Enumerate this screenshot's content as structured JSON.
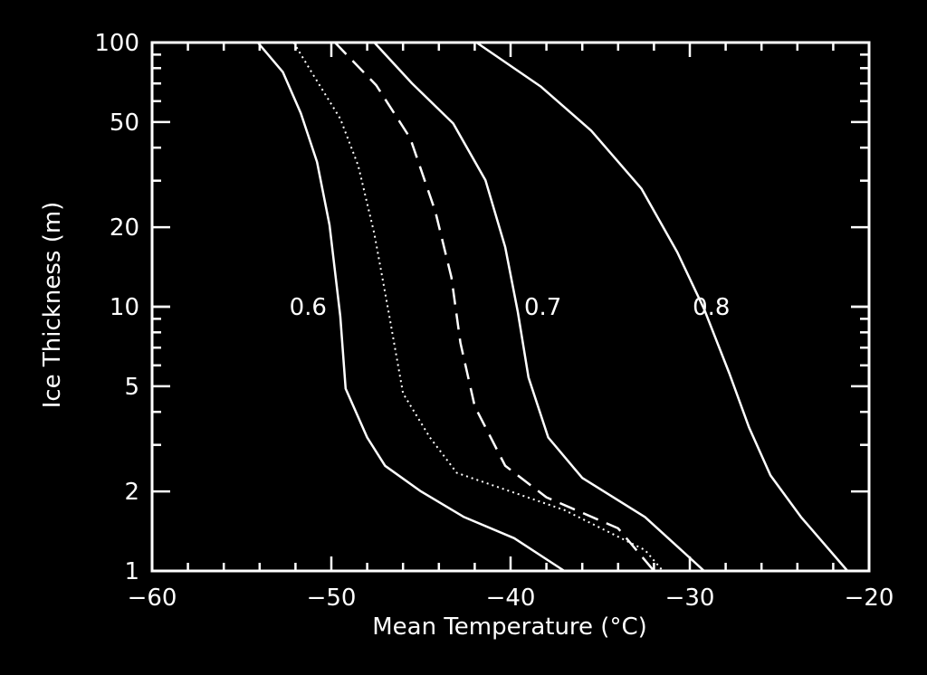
{
  "chart_data": {
    "type": "line",
    "title": "",
    "xlabel": "Mean Temperature (°C)",
    "ylabel": "Ice Thickness (m)",
    "xlim": [
      -60,
      -20
    ],
    "ylim": [
      1,
      100
    ],
    "yscale": "log",
    "grid": false,
    "xticks": [
      -60,
      -50,
      -40,
      -30,
      -20
    ],
    "xtick_labels": [
      "−60",
      "−50",
      "−40",
      "−30",
      "−20"
    ],
    "yticks": [
      1,
      2,
      5,
      10,
      20,
      50,
      100
    ],
    "ytick_labels": [
      "1",
      "2",
      "5",
      "10",
      "20",
      "50",
      "100"
    ],
    "colors": {
      "background": "#000000",
      "foreground": "#ffffff"
    },
    "series": [
      {
        "name": "0.6",
        "style": "solid",
        "label_at": [
          -51.3,
          10
        ],
        "points": [
          [
            -54.1,
            100
          ],
          [
            -52.7,
            77.3
          ],
          [
            -51.7,
            54
          ],
          [
            -50.8,
            35.3
          ],
          [
            -50.1,
            20.4
          ],
          [
            -49.5,
            9.2
          ],
          [
            -49.2,
            4.9
          ],
          [
            -48.0,
            3.2
          ],
          [
            -47.0,
            2.5
          ],
          [
            -45.0,
            2.0
          ],
          [
            -42.6,
            1.6
          ],
          [
            -39.8,
            1.33
          ],
          [
            -37.0,
            1.0
          ]
        ]
      },
      {
        "name": "",
        "style": "dotted",
        "points": [
          [
            -52.1,
            100
          ],
          [
            -51.0,
            75.2
          ],
          [
            -49.5,
            51.5
          ],
          [
            -48.5,
            34.2
          ],
          [
            -47.6,
            18.9
          ],
          [
            -46.8,
            9.5
          ],
          [
            -46.0,
            4.7
          ],
          [
            -44.5,
            3.2
          ],
          [
            -43.0,
            2.35
          ],
          [
            -37.0,
            1.7
          ],
          [
            -32.5,
            1.2
          ],
          [
            -31.5,
            1.0
          ]
        ]
      },
      {
        "name": "",
        "style": "dashed",
        "points": [
          [
            -49.8,
            100
          ],
          [
            -47.5,
            69
          ],
          [
            -45.6,
            43.5
          ],
          [
            -44.2,
            23
          ],
          [
            -43.3,
            12.9
          ],
          [
            -42.8,
            7.3
          ],
          [
            -42.0,
            4.2
          ],
          [
            -40.3,
            2.5
          ],
          [
            -38.0,
            1.9
          ],
          [
            -34.0,
            1.45
          ],
          [
            -32.0,
            1.0
          ]
        ]
      },
      {
        "name": "0.7",
        "style": "solid",
        "label_at": [
          -38.2,
          10
        ],
        "points": [
          [
            -47.6,
            100
          ],
          [
            -45.5,
            70.1
          ],
          [
            -43.2,
            49.4
          ],
          [
            -41.4,
            30.1
          ],
          [
            -40.3,
            16.8
          ],
          [
            -39.6,
            9.6
          ],
          [
            -39.0,
            5.4
          ],
          [
            -37.9,
            3.2
          ],
          [
            -36.0,
            2.25
          ],
          [
            -32.5,
            1.6
          ],
          [
            -29.2,
            1.0
          ]
        ]
      },
      {
        "name": "0.8",
        "style": "solid",
        "label_at": [
          -28.8,
          10
        ],
        "points": [
          [
            -41.9,
            100
          ],
          [
            -38.3,
            68
          ],
          [
            -35.5,
            46.4
          ],
          [
            -32.7,
            28
          ],
          [
            -30.7,
            16.1
          ],
          [
            -29.2,
            9.8
          ],
          [
            -27.8,
            5.6
          ],
          [
            -26.7,
            3.5
          ],
          [
            -25.5,
            2.3
          ],
          [
            -23.8,
            1.6
          ],
          [
            -21.2,
            1.0
          ]
        ]
      }
    ]
  }
}
